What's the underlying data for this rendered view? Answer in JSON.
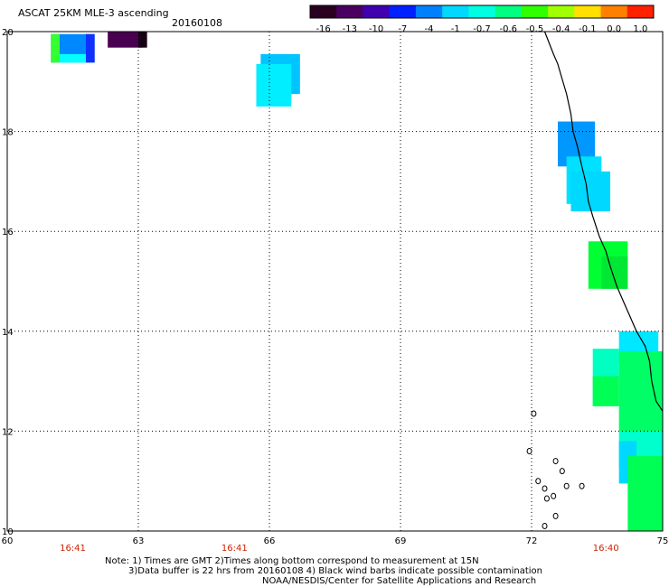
{
  "header": {
    "title": "ASCAT 25KM MLE-3 ascending",
    "date": "20160108"
  },
  "colorbar": {
    "labels": [
      "-16",
      "-13",
      "-10",
      "-7",
      "-4",
      "-1",
      "-0.7",
      "-0.6",
      "-0.5",
      "-0.4",
      "-0.1",
      "0.0",
      "1.0"
    ],
    "colors": [
      "#2a0020",
      "#4a0060",
      "#4000b0",
      "#0020ff",
      "#0080ff",
      "#00d8ff",
      "#00ffe0",
      "#00ff80",
      "#30ff00",
      "#a0ff00",
      "#ffe000",
      "#ff8000",
      "#ff2000"
    ]
  },
  "axes": {
    "x_ticks": [
      "60",
      "63",
      "66",
      "69",
      "72",
      "75"
    ],
    "y_ticks": [
      "10",
      "12",
      "14",
      "16",
      "18",
      "20"
    ],
    "time_labels": [
      {
        "lon": 61.5,
        "text": "16:41"
      },
      {
        "lon": 65.2,
        "text": "16:41"
      },
      {
        "lon": 73.7,
        "text": "16:40"
      }
    ]
  },
  "footer": {
    "line1": "Note: 1) Times are GMT 2)Times along bottom correspond to measurement at 15N",
    "line2": "3)Data buffer is 22 hrs from 20160108 4) Black wind barbs indicate possible contamination",
    "line3": "NOAA/NESDIS/Center for Satellite Applications and Research"
  },
  "map_data": {
    "lon_range": [
      60,
      75
    ],
    "lat_range": [
      10,
      20
    ],
    "cells": [
      {
        "lon": [
          61.0,
          62.0
        ],
        "lat": [
          19.38,
          19.95
        ],
        "color": "#0088ff"
      },
      {
        "lon": [
          61.0,
          61.2
        ],
        "lat": [
          19.38,
          19.95
        ],
        "color": "#33ff33"
      },
      {
        "lon": [
          61.2,
          61.8
        ],
        "lat": [
          19.38,
          19.55
        ],
        "color": "#00ffff"
      },
      {
        "lon": [
          61.8,
          62.0
        ],
        "lat": [
          19.38,
          19.95
        ],
        "color": "#1030ff"
      },
      {
        "lon": [
          62.3,
          63.1
        ],
        "lat": [
          19.68,
          20.0
        ],
        "color": "#4a0050"
      },
      {
        "lon": [
          63.0,
          63.2
        ],
        "lat": [
          19.68,
          20.0
        ],
        "color": "#150015"
      },
      {
        "lon": [
          65.8,
          66.7
        ],
        "lat": [
          18.75,
          19.55
        ],
        "color": "#00c4ff"
      },
      {
        "lon": [
          65.7,
          66.5
        ],
        "lat": [
          18.5,
          19.35
        ],
        "color": "#00eeff"
      },
      {
        "lon": [
          72.6,
          73.45
        ],
        "lat": [
          17.3,
          18.2
        ],
        "color": "#0098ff"
      },
      {
        "lon": [
          72.8,
          73.6
        ],
        "lat": [
          16.55,
          17.5
        ],
        "color": "#00e0ff"
      },
      {
        "lon": [
          72.9,
          73.8
        ],
        "lat": [
          16.4,
          17.2
        ],
        "color": "#00d8ff"
      },
      {
        "lon": [
          73.3,
          74.2
        ],
        "lat": [
          14.85,
          15.8
        ],
        "color": "#00ff33"
      },
      {
        "lon": [
          73.6,
          74.2
        ],
        "lat": [
          14.85,
          15.5
        ],
        "color": "#00e834"
      },
      {
        "lon": [
          74.0,
          74.9
        ],
        "lat": [
          13.35,
          14.0
        ],
        "color": "#00e8ff"
      },
      {
        "lon": [
          73.4,
          74.0
        ],
        "lat": [
          12.5,
          13.65
        ],
        "color": "#00ffc0"
      },
      {
        "lon": [
          73.4,
          74.0
        ],
        "lat": [
          12.5,
          13.1
        ],
        "color": "#00ff55"
      },
      {
        "lon": [
          74.0,
          75.0
        ],
        "lat": [
          12.0,
          13.6
        ],
        "color": "#00ff66"
      },
      {
        "lon": [
          74.0,
          75.0
        ],
        "lat": [
          11.3,
          12.0
        ],
        "color": "#00ffcc"
      },
      {
        "lon": [
          74.0,
          74.4
        ],
        "lat": [
          10.95,
          11.8
        ],
        "color": "#00d8ff"
      },
      {
        "lon": [
          74.2,
          75.0
        ],
        "lat": [
          10.0,
          11.5
        ],
        "color": "#00ff55"
      }
    ],
    "coastline": [
      [
        72.3,
        20.0
      ],
      [
        72.5,
        19.55
      ],
      [
        72.6,
        19.35
      ],
      [
        72.7,
        19.05
      ],
      [
        72.8,
        18.75
      ],
      [
        72.9,
        18.35
      ],
      [
        72.95,
        18.0
      ],
      [
        73.05,
        17.7
      ],
      [
        73.15,
        17.3
      ],
      [
        73.25,
        16.95
      ],
      [
        73.3,
        16.6
      ],
      [
        73.4,
        16.3
      ],
      [
        73.55,
        15.9
      ],
      [
        73.7,
        15.6
      ],
      [
        73.8,
        15.3
      ],
      [
        73.95,
        14.9
      ],
      [
        74.1,
        14.6
      ],
      [
        74.25,
        14.3
      ],
      [
        74.4,
        14.0
      ],
      [
        74.6,
        13.7
      ],
      [
        74.7,
        13.4
      ],
      [
        74.75,
        13.0
      ],
      [
        74.85,
        12.6
      ],
      [
        75.0,
        12.4
      ]
    ],
    "islands": [
      [
        72.05,
        12.35
      ],
      [
        71.95,
        11.6
      ],
      [
        72.55,
        11.4
      ],
      [
        72.7,
        11.2
      ],
      [
        72.15,
        11.0
      ],
      [
        72.8,
        10.9
      ],
      [
        72.3,
        10.85
      ],
      [
        73.15,
        10.9
      ],
      [
        72.35,
        10.65
      ],
      [
        72.5,
        10.7
      ],
      [
        72.55,
        10.3
      ],
      [
        72.3,
        10.1
      ]
    ]
  }
}
